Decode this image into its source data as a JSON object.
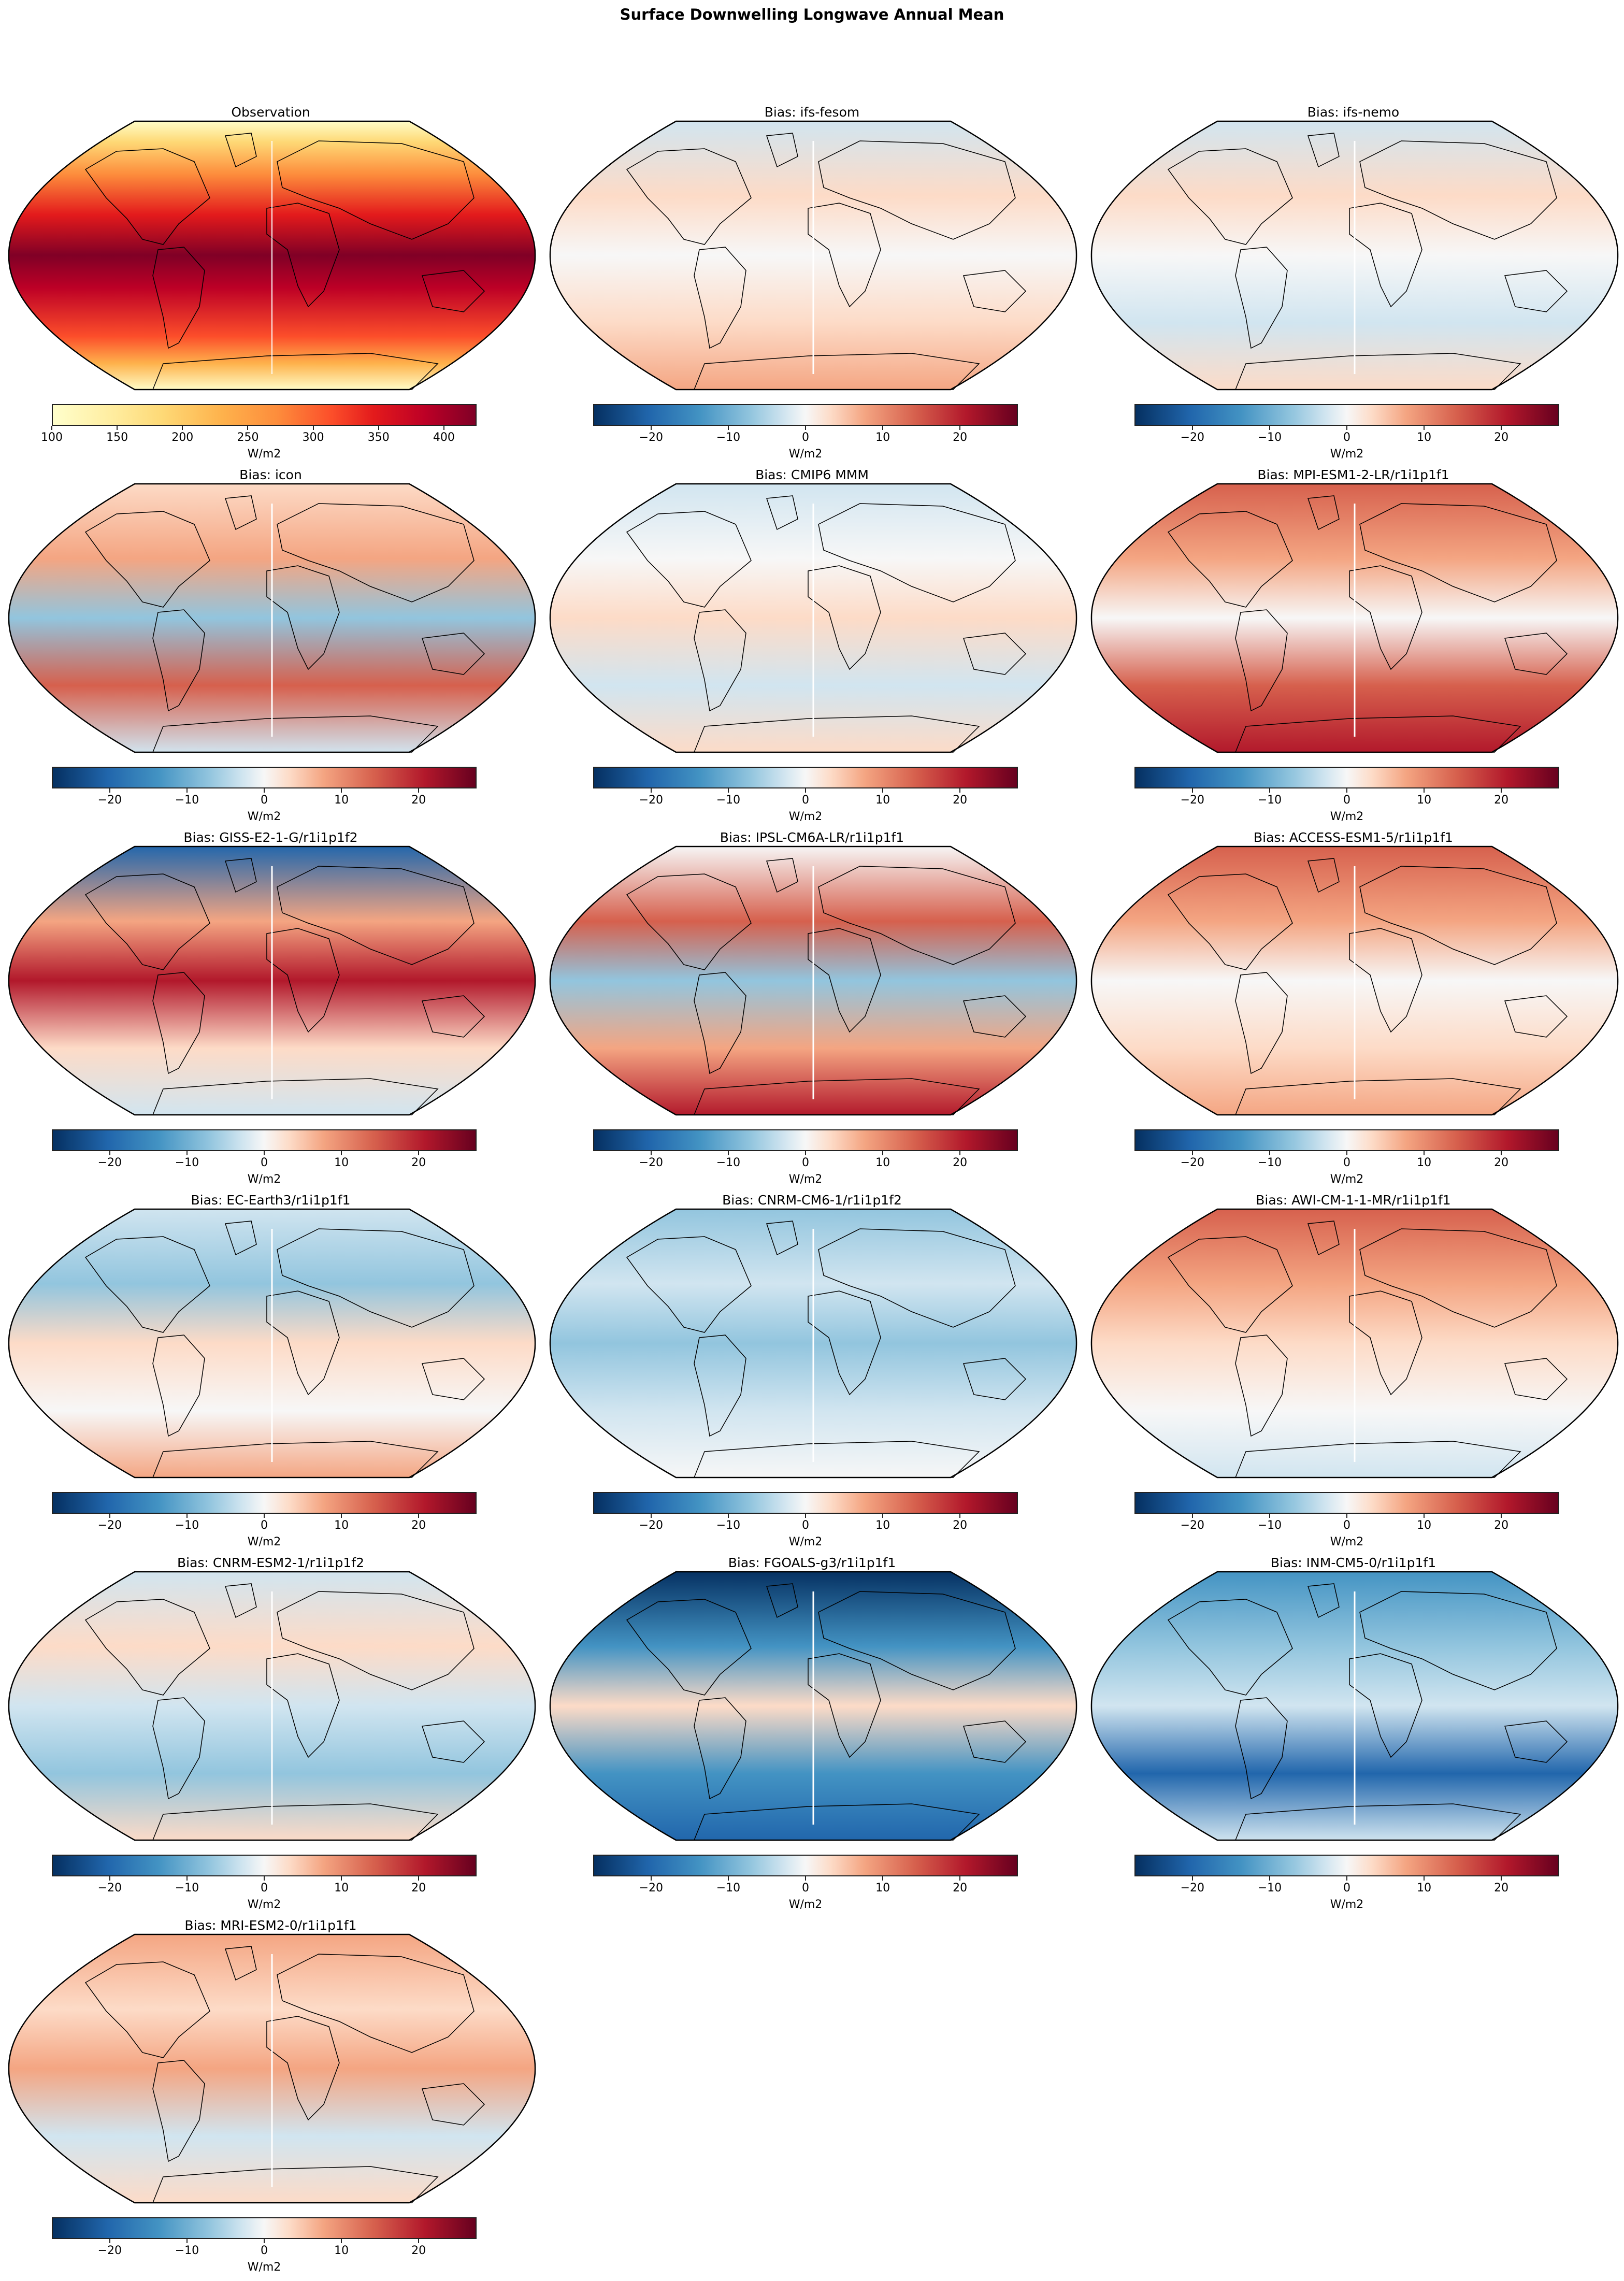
{
  "figure": {
    "suptitle": "Surface Downwelling Longwave Annual Mean"
  },
  "colorbars": {
    "observation": {
      "cmap": "YlOrRd",
      "unit_label": "W/m2",
      "range": [
        100,
        425
      ],
      "ticks": [
        "100",
        "150",
        "200",
        "250",
        "300",
        "350",
        "400"
      ]
    },
    "bias": {
      "cmap": "RdBu_r",
      "unit_label": "W/m2",
      "range": [
        -27.5,
        27.5
      ],
      "ticks": [
        "−20",
        "−10",
        "0",
        "10",
        "20"
      ]
    }
  },
  "panels": [
    {
      "title": "Observation",
      "kind": "observation"
    },
    {
      "title": "Bias: ifs-fesom",
      "kind": "bias"
    },
    {
      "title": "Bias: ifs-nemo",
      "kind": "bias"
    },
    {
      "title": "Bias: icon",
      "kind": "bias"
    },
    {
      "title": "Bias: CMIP6 MMM",
      "kind": "bias"
    },
    {
      "title": "Bias: MPI-ESM1-2-LR/r1i1p1f1",
      "kind": "bias"
    },
    {
      "title": "Bias: GISS-E2-1-G/r1i1p1f2",
      "kind": "bias"
    },
    {
      "title": "Bias: IPSL-CM6A-LR/r1i1p1f1",
      "kind": "bias"
    },
    {
      "title": "Bias: ACCESS-ESM1-5/r1i1p1f1",
      "kind": "bias"
    },
    {
      "title": "Bias: EC-Earth3/r1i1p1f1",
      "kind": "bias"
    },
    {
      "title": "Bias: CNRM-CM6-1/r1i1p1f2",
      "kind": "bias"
    },
    {
      "title": "Bias: AWI-CM-1-1-MR/r1i1p1f1",
      "kind": "bias"
    },
    {
      "title": "Bias: CNRM-ESM2-1/r1i1p1f2",
      "kind": "bias"
    },
    {
      "title": "Bias: FGOALS-g3/r1i1p1f1",
      "kind": "bias"
    },
    {
      "title": "Bias: INM-CM5-0/r1i1p1f1",
      "kind": "bias"
    },
    {
      "title": "Bias: MRI-ESM2-0/r1i1p1f1",
      "kind": "bias"
    }
  ],
  "chart_data": {
    "type": "heatmap",
    "title": "Surface Downwelling Longwave Annual Mean",
    "projection": "Robinson (global map)",
    "layout": {
      "rows": 6,
      "cols": 3,
      "panels_shown": 16
    },
    "panels": [
      {
        "title": "Observation",
        "cmap": "YlOrRd",
        "colorbar_range": [
          100,
          425
        ],
        "colorbar_ticks": [
          100,
          150,
          200,
          250,
          300,
          350,
          400
        ],
        "colorbar_label": "W/m2",
        "description": "Highest (~400+) in tropics/equatorial band; lowest (~100-150) over Antarctica, Greenland and Tibetan Plateau"
      },
      {
        "title": "Bias: ifs-fesom",
        "cmap": "RdBu_r",
        "colorbar_range": [
          -27.5,
          27.5
        ],
        "colorbar_ticks": [
          -20,
          -10,
          0,
          10,
          20
        ],
        "colorbar_label": "W/m2",
        "description": "Mostly weak positive over oceans, strong positive Southern Ocean band; negative over Eurasia, Arabian Sea, N Atlantic"
      },
      {
        "title": "Bias: ifs-nemo",
        "cmap": "RdBu_r",
        "colorbar_range": [
          -27.5,
          27.5
        ],
        "colorbar_ticks": [
          -20,
          -10,
          0,
          10,
          20
        ],
        "colorbar_label": "W/m2",
        "description": "Weak biases; mild positive Southern Ocean, mild negative Eurasia and southern subtropics"
      },
      {
        "title": "Bias: icon",
        "cmap": "RdBu_r",
        "colorbar_range": [
          -27.5,
          27.5
        ],
        "colorbar_ticks": [
          -20,
          -10,
          0,
          10,
          20
        ],
        "colorbar_label": "W/m2",
        "description": "Strong negative over tropical land and equatorial Pacific; strong positive Southern Ocean and Arctic, eastern boundary stratocumulus regions"
      },
      {
        "title": "Bias: CMIP6 MMM",
        "cmap": "RdBu_r",
        "colorbar_range": [
          -27.5,
          27.5
        ],
        "colorbar_ticks": [
          -20,
          -10,
          0,
          10,
          20
        ],
        "colorbar_label": "W/m2",
        "description": "Moderate; positive over stratocumulus regions and Tibet, negative over high-latitude oceans"
      },
      {
        "title": "Bias: MPI-ESM1-2-LR/r1i1p1f1",
        "cmap": "RdBu_r",
        "colorbar_range": [
          -27.5,
          27.5
        ],
        "colorbar_ticks": [
          -20,
          -10,
          0,
          10,
          20
        ],
        "colorbar_label": "W/m2",
        "description": "Strong positive over Arctic, Eurasia and Southern Ocean"
      },
      {
        "title": "Bias: GISS-E2-1-G/r1i1p1f2",
        "cmap": "RdBu_r",
        "colorbar_range": [
          -27.5,
          27.5
        ],
        "colorbar_ticks": [
          -20,
          -10,
          0,
          10,
          20
        ],
        "colorbar_label": "W/m2",
        "description": "Very strong positive over Africa/Middle East and tropical Pacific; negative Arctic"
      },
      {
        "title": "Bias: IPSL-CM6A-LR/r1i1p1f1",
        "cmap": "RdBu_r",
        "colorbar_range": [
          -27.5,
          27.5
        ],
        "colorbar_ticks": [
          -20,
          -10,
          0,
          10,
          20
        ],
        "colorbar_label": "W/m2",
        "description": "Strong positive Southern Ocean and N Pacific; negative Africa, South Asia and equatorial Pacific"
      },
      {
        "title": "Bias: ACCESS-ESM1-5/r1i1p1f1",
        "cmap": "RdBu_r",
        "colorbar_range": [
          -27.5,
          27.5
        ],
        "colorbar_ticks": [
          -20,
          -10,
          0,
          10,
          20
        ],
        "colorbar_label": "W/m2",
        "description": "Positive over most continents and stratocumulus regions"
      },
      {
        "title": "Bias: EC-Earth3/r1i1p1f1",
        "cmap": "RdBu_r",
        "colorbar_range": [
          -27.5,
          27.5
        ],
        "colorbar_ticks": [
          -20,
          -10,
          0,
          10,
          20
        ],
        "colorbar_label": "W/m2",
        "description": "Negative over Africa/Eurasia; positive Southern Ocean"
      },
      {
        "title": "Bias: CNRM-CM6-1/r1i1p1f2",
        "cmap": "RdBu_r",
        "colorbar_range": [
          -27.5,
          27.5
        ],
        "colorbar_ticks": [
          -20,
          -10,
          0,
          10,
          20
        ],
        "colorbar_label": "W/m2",
        "description": "Mostly negative over oceans; negative South America and Asia"
      },
      {
        "title": "Bias: AWI-CM-1-1-MR/r1i1p1f1",
        "cmap": "RdBu_r",
        "colorbar_range": [
          -27.5,
          27.5
        ],
        "colorbar_ticks": [
          -20,
          -10,
          0,
          10,
          20
        ],
        "colorbar_label": "W/m2",
        "description": "Strong positive across Northern Hemisphere land and Arctic"
      },
      {
        "title": "Bias: CNRM-ESM2-1/r1i1p1f2",
        "cmap": "RdBu_r",
        "colorbar_range": [
          -27.5,
          27.5
        ],
        "colorbar_ticks": [
          -20,
          -10,
          0,
          10,
          20
        ],
        "colorbar_label": "W/m2",
        "description": "Mostly weak negative oceans, positive Africa and N America"
      },
      {
        "title": "Bias: FGOALS-g3/r1i1p1f1",
        "cmap": "RdBu_r",
        "colorbar_range": [
          -27.5,
          27.5
        ],
        "colorbar_ticks": [
          -20,
          -10,
          0,
          10,
          20
        ],
        "colorbar_label": "W/m2",
        "description": "Strong negative at high latitudes and most oceans; positive equatorial bands and mountain ranges"
      },
      {
        "title": "Bias: INM-CM5-0/r1i1p1f1",
        "cmap": "RdBu_r",
        "colorbar_range": [
          -27.5,
          27.5
        ],
        "colorbar_ticks": [
          -20,
          -10,
          0,
          10,
          20
        ],
        "colorbar_label": "W/m2",
        "description": "Predominantly negative; positive along Andes and Rockies"
      },
      {
        "title": "Bias: MRI-ESM2-0/r1i1p1f1",
        "cmap": "RdBu_r",
        "colorbar_range": [
          -27.5,
          27.5
        ],
        "colorbar_ticks": [
          -20,
          -10,
          0,
          10,
          20
        ],
        "colorbar_label": "W/m2",
        "description": "Positive over N America, Eurasia, SE Pacific; negative Australia, S Asia, subtropical Pacific"
      }
    ]
  }
}
